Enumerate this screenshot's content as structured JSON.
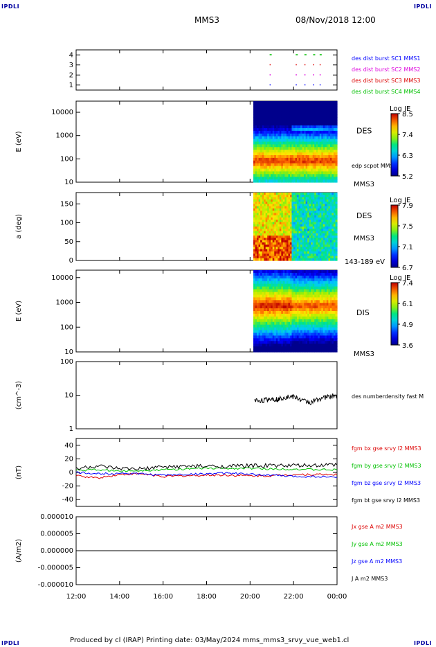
{
  "corners": {
    "tl": "IPDLI",
    "tr": "IPDLI",
    "bl": "IPDLI",
    "br": "IPDLI"
  },
  "header": {
    "spacecraft": "MMS3",
    "datetime": "08/Nov/2018 12:00"
  },
  "footer": {
    "text": "Produced by cl (IRAP)   Printing date: 03/May/2024   mms_mms3_srvy_vue_web1.cl"
  },
  "time_axis": {
    "ticks": [
      "12:00",
      "14:00",
      "16:00",
      "18:00",
      "20:00",
      "22:00",
      "00:00"
    ],
    "start_hour": 12,
    "end_hour": 24
  },
  "colors": {
    "black": "#000000",
    "red": "#dd0000",
    "green": "#00c000",
    "blue": "#0000ff",
    "magenta": "#dd00dd"
  },
  "chart_data": [
    {
      "type": "scatter",
      "id": "burst",
      "ylabel": "",
      "ylim": [
        0.5,
        4.5
      ],
      "yticks": [
        "1",
        "2",
        "3",
        "4"
      ],
      "legend": [
        "des dist burst SC1 MMS1",
        "des dist burst SC2 MMS2",
        "des dist burst SC3 MMS3",
        "des dist burst SC4 MMS4"
      ],
      "legend_colors": [
        "#0000ff",
        "#dd00dd",
        "#dd0000",
        "#00c000"
      ],
      "series": [
        {
          "name": "des dist burst SC1 MMS1",
          "y": 1,
          "times": [
            20.9,
            22.1,
            22.5,
            22.9,
            23.2
          ]
        },
        {
          "name": "des dist burst SC2 MMS2",
          "y": 2,
          "times": [
            20.9,
            22.1,
            22.5,
            22.9,
            23.2
          ]
        },
        {
          "name": "des dist burst SC3 MMS3",
          "y": 3,
          "times": [
            20.9,
            22.1,
            22.5,
            22.9,
            23.2
          ]
        },
        {
          "name": "des dist burst SC4 MMS4",
          "y": 4,
          "times": [
            20.9,
            22.1,
            22.5,
            22.9,
            23.2
          ]
        }
      ]
    },
    {
      "type": "heatmap",
      "id": "des_energy",
      "ylabel": "E (eV)",
      "yscale": "log",
      "ylim": [
        10,
        30000
      ],
      "yticks": [
        "10",
        "100",
        "1000",
        "10000"
      ],
      "label": "DES",
      "sub": "MMS3",
      "extra": "edp scpot MMS3",
      "data_start_hour": 20.15,
      "colorbar": {
        "title": "Log JE",
        "ticks": [
          "8.5",
          "7.4",
          "6.3",
          "5.2"
        ],
        "min": 5.2,
        "max": 8.5
      }
    },
    {
      "type": "heatmap",
      "id": "des_pitch",
      "ylabel": "a (deg)",
      "ylim": [
        0,
        180
      ],
      "yticks": [
        "0",
        "50",
        "100",
        "150"
      ],
      "label": "DES",
      "sub": "MMS3",
      "extra": "143-189 eV",
      "data_start_hour": 20.15,
      "colorbar": {
        "title": "Log JE",
        "ticks": [
          "7.9",
          "7.5",
          "7.1",
          "6.7"
        ],
        "min": 6.7,
        "max": 7.9
      }
    },
    {
      "type": "heatmap",
      "id": "dis_energy",
      "ylabel": "E (eV)",
      "yscale": "log",
      "ylim": [
        10,
        20000
      ],
      "yticks": [
        "10",
        "100",
        "1000",
        "10000"
      ],
      "label": "DIS",
      "sub": "MMS3",
      "data_start_hour": 20.15,
      "colorbar": {
        "title": "Log JE",
        "ticks": [
          "7.4",
          "6.1",
          "4.9",
          "3.6"
        ],
        "min": 3.6,
        "max": 7.4
      }
    },
    {
      "type": "line",
      "id": "density",
      "ylabel": "(cm^-3)",
      "yscale": "log",
      "ylim": [
        1,
        100
      ],
      "yticks": [
        "1",
        "10",
        "100"
      ],
      "legend": [
        "des numberdensity fast M"
      ],
      "series": [
        {
          "name": "des numberdensity fast M",
          "x": [
            20.2,
            20.6,
            21.0,
            21.3,
            21.6,
            22.0,
            22.4,
            22.8,
            23.2,
            23.6,
            24.0
          ],
          "y": [
            7,
            7,
            8,
            7.5,
            9,
            9,
            7,
            6,
            8,
            9,
            10
          ]
        }
      ]
    },
    {
      "type": "line",
      "id": "fgm",
      "ylabel": "(nT)",
      "ylim": [
        -50,
        50
      ],
      "yticks": [
        "-40",
        "-20",
        "0",
        "20",
        "40"
      ],
      "legend": [
        "fgm bx gse srvy l2 MMS3",
        "fgm by gse srvy l2 MMS3",
        "fgm bz gse srvy l2 MMS3",
        "fgm bt gse srvy l2 MMS3"
      ],
      "legend_colors": [
        "#dd0000",
        "#00c000",
        "#0000ff",
        "#000000"
      ],
      "series": [
        {
          "name": "fgm bx gse srvy l2 MMS3",
          "x": [
            12,
            13,
            14,
            15,
            16,
            17,
            18,
            19,
            20,
            21,
            22,
            23,
            24
          ],
          "y": [
            -5,
            -8,
            -3,
            -2,
            -6,
            -5,
            -4,
            -4,
            -5,
            -5,
            -3,
            -3,
            -3
          ]
        },
        {
          "name": "fgm by gse srvy l2 MMS3",
          "x": [
            12,
            13,
            14,
            15,
            16,
            17,
            18,
            19,
            20,
            21,
            22,
            23,
            24
          ],
          "y": [
            3,
            4,
            2,
            3,
            4,
            5,
            6,
            6,
            6,
            5,
            5,
            4,
            4
          ]
        },
        {
          "name": "fgm bz gse srvy l2 MMS3",
          "x": [
            12,
            13,
            14,
            15,
            16,
            17,
            18,
            19,
            20,
            21,
            22,
            23,
            24
          ],
          "y": [
            0,
            -2,
            -1,
            -2,
            -4,
            -3,
            -2,
            -1,
            -3,
            -4,
            -6,
            -6,
            -7
          ]
        },
        {
          "name": "fgm bt gse srvy l2 MMS3",
          "x": [
            12,
            13,
            14,
            15,
            16,
            17,
            18,
            19,
            20,
            21,
            22,
            23,
            24
          ],
          "y": [
            6,
            9,
            5,
            5,
            8,
            9,
            9,
            9,
            10,
            10,
            10,
            10,
            11
          ]
        }
      ]
    },
    {
      "type": "line",
      "id": "current",
      "ylabel": "(A/m2)",
      "ylim": [
        -1e-05,
        1e-05
      ],
      "yticks": [
        "-0.000010",
        "-0.000005",
        "0.000000",
        "0.000005",
        "0.000010"
      ],
      "legend": [
        "Jx gse A m2 MMS3",
        "Jy gse A m2 MMS3",
        "Jz gse A m2 MMS3",
        "J A m2 MMS3"
      ],
      "legend_colors": [
        "#dd0000",
        "#00c000",
        "#0000ff",
        "#000000"
      ],
      "series": [
        {
          "name": "Jx gse A m2 MMS3",
          "x": [
            12,
            18,
            24
          ],
          "y": [
            0,
            0,
            0
          ]
        },
        {
          "name": "Jy gse A m2 MMS3",
          "x": [
            12,
            18,
            24
          ],
          "y": [
            0,
            0,
            0
          ]
        },
        {
          "name": "Jz gse A m2 MMS3",
          "x": [
            12,
            18,
            24
          ],
          "y": [
            0,
            0,
            0
          ]
        },
        {
          "name": "J A m2 MMS3",
          "x": [
            12,
            18,
            24
          ],
          "y": [
            0,
            0,
            0
          ]
        }
      ]
    }
  ]
}
